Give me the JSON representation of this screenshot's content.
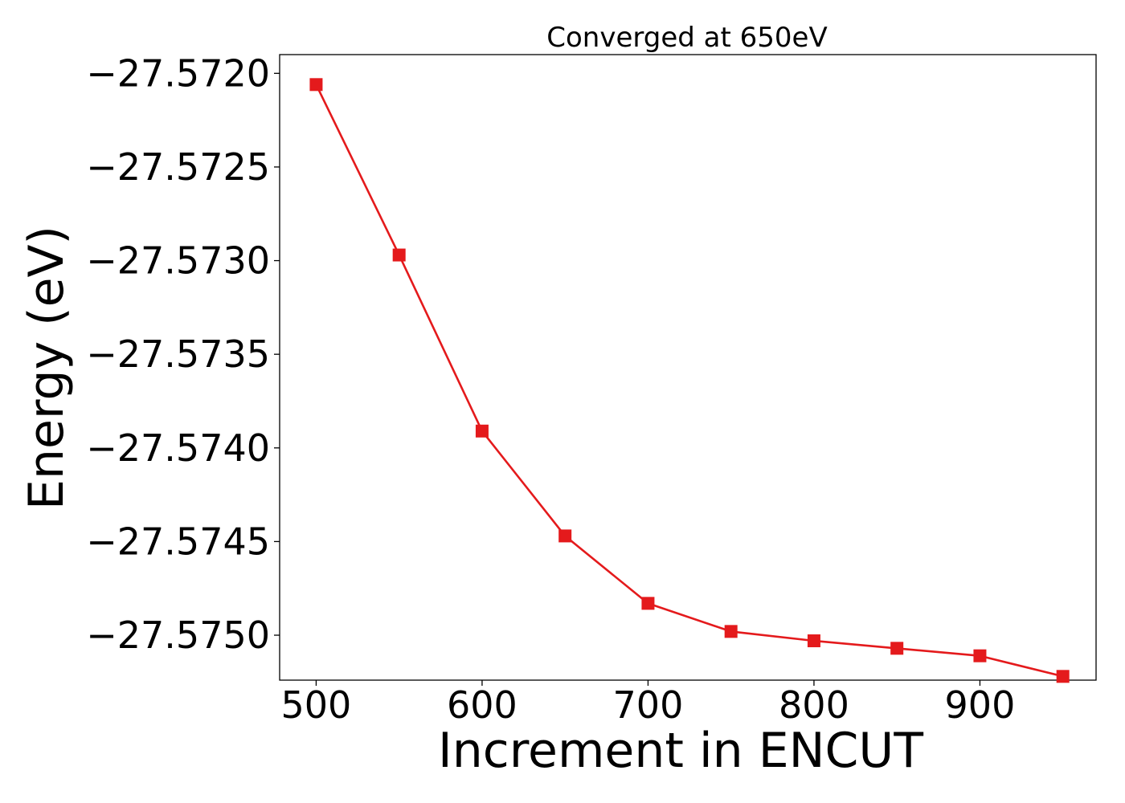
{
  "chart_data": {
    "type": "line",
    "title": "Converged at 650eV",
    "xlabel": "Increment in ENCUT",
    "ylabel": "Energy (eV)",
    "xlim": [
      478,
      970
    ],
    "ylim": [
      -27.57524,
      -27.5719
    ],
    "x_ticks": [
      500,
      600,
      700,
      800,
      900
    ],
    "y_ticks": [
      -27.572,
      -27.5725,
      -27.573,
      -27.5735,
      -27.574,
      -27.5745,
      -27.575
    ],
    "x_tick_labels": [
      "500",
      "600",
      "700",
      "800",
      "900"
    ],
    "y_tick_labels": [
      "−27.5720",
      "−27.5725",
      "−27.5730",
      "−27.5735",
      "−27.5740",
      "−27.5745",
      "−27.5750"
    ],
    "grid": false,
    "series": [
      {
        "color": "#e41a1c",
        "marker": "square",
        "x": [
          500,
          550,
          600,
          650,
          700,
          750,
          800,
          850,
          900,
          950
        ],
        "y": [
          -27.57206,
          -27.57297,
          -27.57391,
          -27.57447,
          -27.57483,
          -27.57498,
          -27.57503,
          -27.57507,
          -27.57511,
          -27.57522
        ]
      }
    ]
  }
}
